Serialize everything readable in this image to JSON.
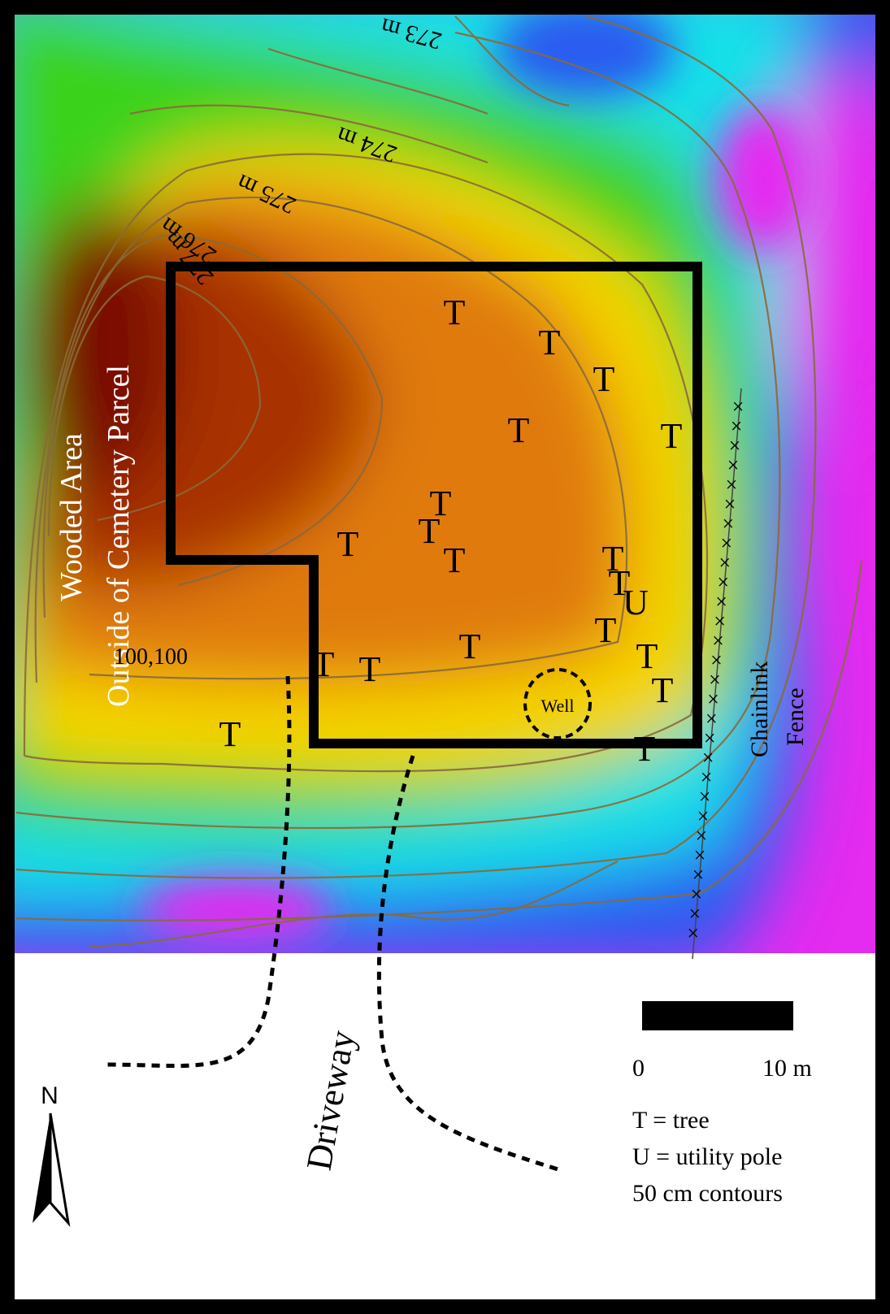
{
  "map": {
    "contour_labels": [
      "273 m",
      "274 m",
      "275 m",
      "276 m",
      "277 m"
    ],
    "area_label_line1": "Wooded Area",
    "area_label_line2": "Outside of Cemetery Parcel",
    "fence_label_line1": "Chainlink",
    "fence_label_line2": "Fence",
    "fence_marker": "×",
    "grid_origin_label": "100,100",
    "well_label": "Well",
    "driveway_label": "Driveway",
    "tree_symbol": "T",
    "utility_symbol": "U",
    "tree_count": 21,
    "utility_pole_count": 1,
    "north_label": "N"
  },
  "scale_bar": {
    "start_label": "0",
    "end_label": "10 m"
  },
  "legend": {
    "tree": "T = tree",
    "utility": "U = utility pole",
    "contours": "50 cm contours"
  },
  "colors": {
    "summit": "#7a1005",
    "high": "#e07a0c",
    "mid_high": "#f7d500",
    "mid": "#3ad21c",
    "mid_low": "#14e0e8",
    "low": "#2a5cf0",
    "lowest": "#e42bf0",
    "contour_line": "#8a6a3a",
    "parcel_border": "#000000"
  }
}
